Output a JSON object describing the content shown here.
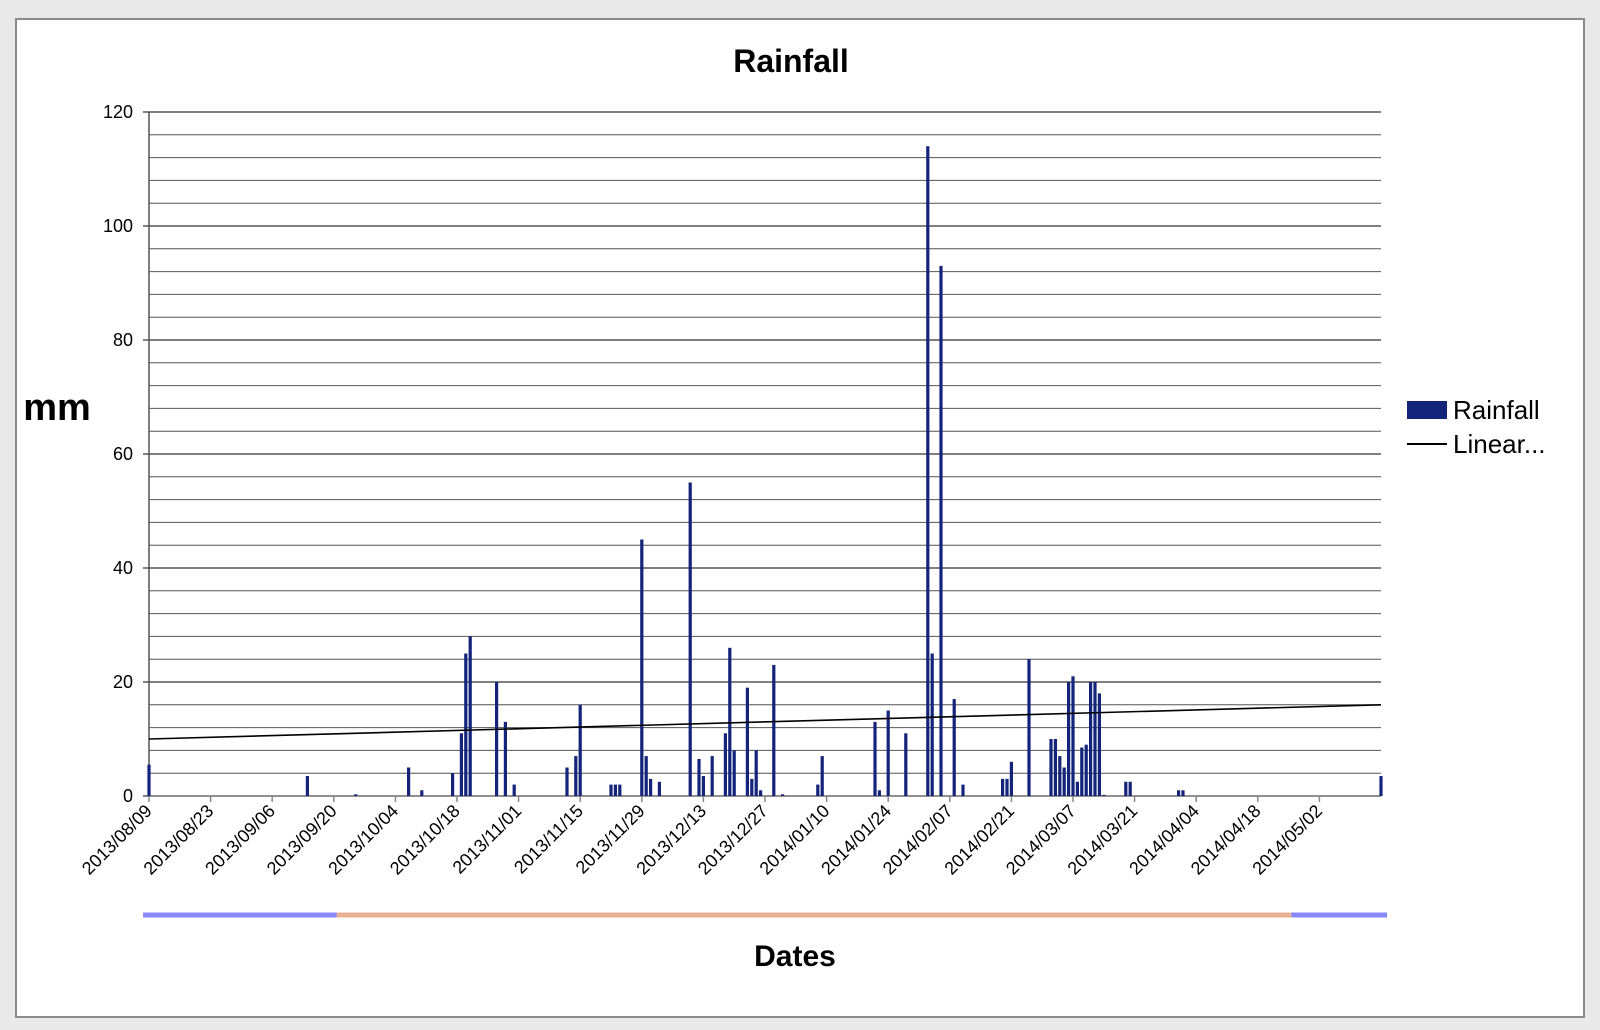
{
  "colors": {
    "bar": "#13247a",
    "trendline": "#000000",
    "grid": "#555555",
    "season_blue": "#8888ff",
    "season_orange": "#e8b292"
  },
  "chart_data": {
    "type": "bar",
    "title": "Rainfall",
    "xlabel": "Dates",
    "ylabel": "mm",
    "ylim": [
      0,
      120
    ],
    "yticks": [
      0,
      20,
      40,
      60,
      80,
      100,
      120
    ],
    "y_minor_step": 4,
    "xlim": [
      "2013/08/09",
      "2014/05/16"
    ],
    "xtick_labels": [
      "2013/08/09",
      "2013/08/23",
      "2013/09/06",
      "2013/09/20",
      "2013/10/04",
      "2013/10/18",
      "2013/11/01",
      "2013/11/15",
      "2013/11/29",
      "2013/12/13",
      "2013/12/27",
      "2014/01/10",
      "2014/01/24",
      "2014/02/07",
      "2014/02/21",
      "2014/03/07",
      "2014/03/21",
      "2014/04/04",
      "2014/04/18",
      "2014/05/02"
    ],
    "grid": true,
    "legend_position": "right",
    "series": [
      {
        "name": "Rainfall",
        "type": "bar",
        "x": [
          "2013/08/09",
          "2013/09/14",
          "2013/09/25",
          "2013/10/07",
          "2013/10/10",
          "2013/10/17",
          "2013/10/19",
          "2013/10/20",
          "2013/10/21",
          "2013/10/27",
          "2013/10/29",
          "2013/10/31",
          "2013/11/12",
          "2013/11/14",
          "2013/11/15",
          "2013/11/22",
          "2013/11/23",
          "2013/11/24",
          "2013/11/29",
          "2013/11/30",
          "2013/12/01",
          "2013/12/03",
          "2013/12/10",
          "2013/12/12",
          "2013/12/13",
          "2013/12/15",
          "2013/12/18",
          "2013/12/19",
          "2013/12/20",
          "2013/12/23",
          "2013/12/24",
          "2013/12/25",
          "2013/12/26",
          "2013/12/29",
          "2013/12/31",
          "2014/01/08",
          "2014/01/09",
          "2014/01/21",
          "2014/01/22",
          "2014/01/24",
          "2014/01/28",
          "2014/02/02",
          "2014/02/03",
          "2014/02/05",
          "2014/02/08",
          "2014/02/10",
          "2014/02/19",
          "2014/02/20",
          "2014/02/21",
          "2014/02/25",
          "2014/03/02",
          "2014/03/03",
          "2014/03/04",
          "2014/03/05",
          "2014/03/06",
          "2014/03/07",
          "2014/03/08",
          "2014/03/09",
          "2014/03/10",
          "2014/03/11",
          "2014/03/12",
          "2014/03/13",
          "2014/03/14",
          "2014/03/19",
          "2014/03/20",
          "2014/03/31",
          "2014/04/01",
          "2014/05/16"
        ],
        "values": [
          5.5,
          3.5,
          0.3,
          5,
          1,
          4,
          11,
          25,
          28,
          20,
          13,
          2,
          5,
          7,
          16,
          2,
          2,
          2,
          45,
          7,
          3,
          2.5,
          55,
          6.5,
          3.5,
          7,
          11,
          26,
          8,
          19,
          3,
          8,
          1,
          23,
          0.3,
          2,
          7,
          13,
          1,
          15,
          11,
          114,
          25,
          93,
          17,
          2,
          3,
          3,
          6,
          24,
          10,
          10,
          7,
          5,
          20,
          21,
          2.5,
          8.5,
          9,
          20,
          20,
          18,
          0.2,
          2.5,
          2.5,
          1,
          1,
          3.5
        ]
      },
      {
        "name": "Linear...",
        "type": "line",
        "x": [
          "2013/08/09",
          "2014/05/16"
        ],
        "values": [
          10,
          16
        ]
      }
    ]
  },
  "seasons": [
    {
      "from": "2013/08/09",
      "to": "2013/09/21",
      "color_key": "season_blue"
    },
    {
      "from": "2013/09/22",
      "to": "2014/04/25",
      "color_key": "season_orange"
    },
    {
      "from": "2014/04/27",
      "to": "2014/05/16",
      "color_key": "season_blue"
    }
  ]
}
